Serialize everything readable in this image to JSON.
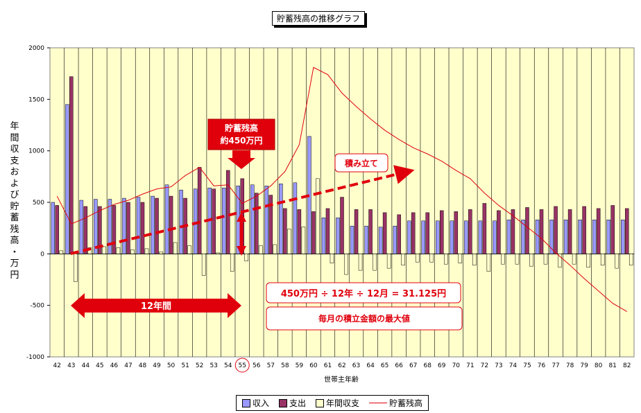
{
  "title": "貯蓄残高の推移グラフ",
  "chart_data": {
    "type": "bar",
    "xlabel": "世帯主年齢",
    "ylabel": "年間収支および貯蓄残高・万円",
    "ylim": [
      -1000,
      2000
    ],
    "yticks": [
      -1000,
      -500,
      0,
      500,
      1000,
      1500,
      2000
    ],
    "grid": true,
    "legend_position": "bottom",
    "categories": [
      "42",
      "43",
      "44",
      "45",
      "46",
      "47",
      "48",
      "49",
      "50",
      "51",
      "52",
      "53",
      "54",
      "55",
      "56",
      "57",
      "58",
      "59",
      "60",
      "61",
      "62",
      "63",
      "64",
      "65",
      "66",
      "67",
      "68",
      "69",
      "70",
      "71",
      "72",
      "73",
      "74",
      "75",
      "76",
      "77",
      "78",
      "79",
      "80",
      "81",
      "82"
    ],
    "series": [
      {
        "name": "収入",
        "kind": "bar",
        "color": "#9999ff",
        "values": [
          500,
          1450,
          520,
          530,
          530,
          540,
          550,
          560,
          670,
          620,
          630,
          640,
          640,
          660,
          670,
          660,
          680,
          690,
          1140,
          350,
          350,
          270,
          270,
          260,
          270,
          320,
          320,
          320,
          320,
          320,
          320,
          320,
          330,
          330,
          330,
          330,
          330,
          330,
          330,
          330,
          330
        ]
      },
      {
        "name": "支出",
        "kind": "bar",
        "color": "#993366",
        "values": [
          470,
          1720,
          460,
          460,
          470,
          500,
          500,
          540,
          560,
          540,
          840,
          630,
          810,
          730,
          590,
          570,
          440,
          430,
          410,
          440,
          550,
          430,
          430,
          400,
          380,
          400,
          400,
          420,
          410,
          430,
          490,
          420,
          430,
          450,
          430,
          460,
          430,
          460,
          440,
          470,
          440
        ]
      },
      {
        "name": "年間収支",
        "kind": "bar",
        "color": "#ffffcc",
        "values": [
          30,
          -270,
          60,
          70,
          60,
          40,
          50,
          20,
          110,
          80,
          -210,
          10,
          -170,
          -70,
          80,
          90,
          240,
          260,
          730,
          -90,
          -200,
          -160,
          -160,
          -140,
          -110,
          -80,
          -80,
          -100,
          -90,
          -110,
          -170,
          -100,
          -100,
          -120,
          -100,
          -130,
          -100,
          -130,
          -110,
          -140,
          -110
        ]
      },
      {
        "name": "貯蓄残高",
        "kind": "line",
        "color": "#e0000c",
        "values": [
          560,
          290,
          350,
          420,
          480,
          520,
          580,
          630,
          650,
          760,
          840,
          660,
          670,
          490,
          560,
          660,
          800,
          1060,
          1810,
          1740,
          1560,
          1430,
          1310,
          1200,
          1110,
          1030,
          970,
          900,
          810,
          730,
          590,
          470,
          370,
          260,
          150,
          10,
          -110,
          -240,
          -360,
          -480,
          -560
        ]
      }
    ],
    "annotations": {
      "callout_savings": [
        "貯蓄残高",
        "約450万円"
      ],
      "accumulate": "積み立て",
      "twelve_years": "12年間",
      "formula": "450万円 ÷ 12年 ÷ 12月 = 31.125円",
      "max_monthly": "毎月の積立金額の最大値",
      "highlighted_age": "55"
    }
  }
}
